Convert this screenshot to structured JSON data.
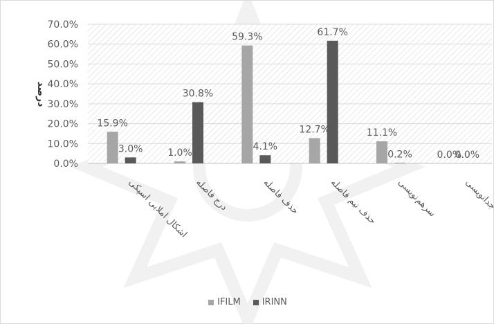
{
  "chart_data": {
    "type": "bar",
    "categories": [
      "اشکال املایی اسپکی",
      "درج فاصله",
      "حذف فاصله",
      "حذف نیم فاصله",
      "سرهم‌نویسی",
      "جدانویسی"
    ],
    "series": [
      {
        "name": "IFILM",
        "values": [
          15.9,
          1.0,
          59.3,
          12.7,
          11.1,
          0.0
        ],
        "color": "#a6a6a6"
      },
      {
        "name": "IRINN",
        "values": [
          3.0,
          30.8,
          4.1,
          61.7,
          0.2,
          0.0
        ],
        "color": "#595959"
      }
    ],
    "data_labels": [
      [
        "15.9%",
        "1.0%",
        "59.3%",
        "12.7%",
        "11.1%",
        "0.0%"
      ],
      [
        "3.0%",
        "30.8%",
        "4.1%",
        "61.7%",
        "0.2%",
        "0.0%"
      ]
    ],
    "title": "",
    "xlabel": "",
    "ylabel": "درصد",
    "ylim": [
      0,
      70
    ],
    "yticks": [
      0,
      10,
      20,
      30,
      40,
      50,
      60,
      70
    ],
    "ytick_labels": [
      "0.0%",
      "10.0%",
      "20.0%",
      "30.0%",
      "40.0%",
      "50.0%",
      "60.0%",
      "70.0%"
    ],
    "grid": true,
    "legend_position": "bottom",
    "plot_background": "hatched"
  }
}
